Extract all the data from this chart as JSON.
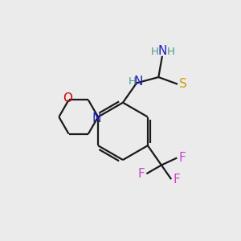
{
  "background_color": "#ebebeb",
  "atom_colors": {
    "C": "#000000",
    "H": "#4a9a8a",
    "N": "#2020c0",
    "O": "#cc0000",
    "S": "#c8a000",
    "F": "#cc44cc"
  },
  "bond_color": "#1a1a1a",
  "bond_width": 1.6,
  "font_size_atoms": 11,
  "font_size_h": 9.5
}
